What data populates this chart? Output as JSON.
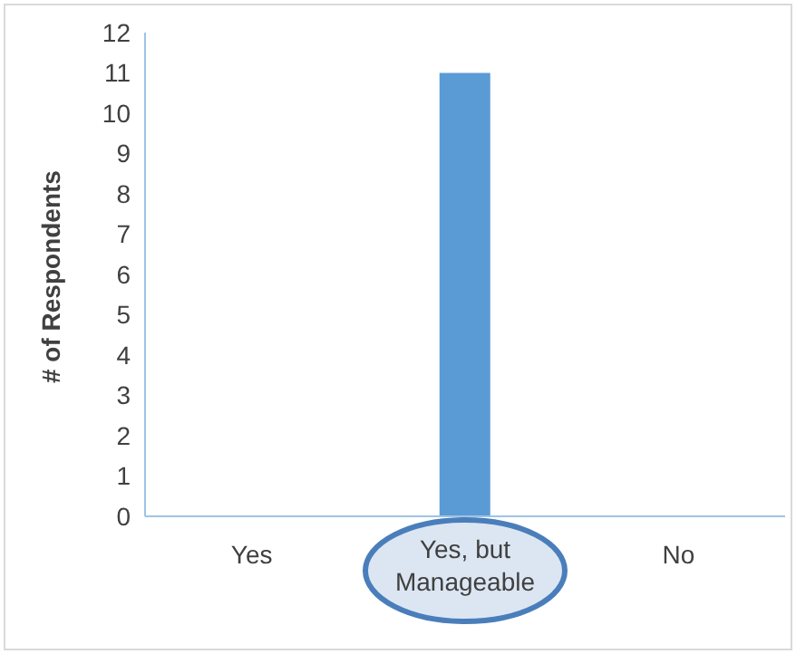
{
  "chart_data": {
    "type": "bar",
    "categories": [
      "Yes",
      "Yes, but Manageable",
      "No"
    ],
    "values": [
      0,
      11,
      0
    ],
    "color": "#5b9bd5",
    "ylabel": "# of Respondents",
    "ylim": [
      0,
      12
    ],
    "yticks": [
      0,
      1,
      2,
      3,
      4,
      5,
      6,
      7,
      8,
      9,
      10,
      11,
      12
    ],
    "grid": false
  }
}
